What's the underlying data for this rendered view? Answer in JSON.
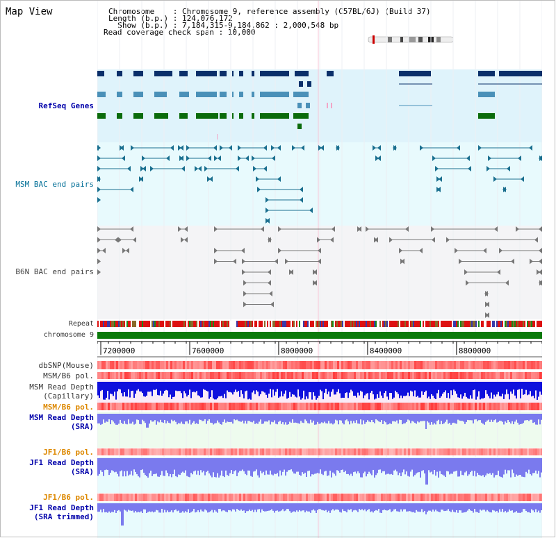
{
  "header": {
    "title": "Map View",
    "info_lines": [
      "Chromosome    : Chromosome 9, reference assembly (C57BL/6J) (Build 37)",
      "Length (b.p.) : 124,076,172",
      "  Show (b.p.) : 7,184,315-9,184,862 : 2,000,548 bp",
      "Read coverage check span : 10,000"
    ]
  },
  "tracks": {
    "refseq": "RefSeq Genes",
    "msm_bac": "MSM BAC end pairs",
    "b6n_bac": "B6N BAC end pairs",
    "repeat": "Repeat",
    "chromosome": "chromosome 9",
    "dbsnp": "dbSNP(Mouse)",
    "msm_b6_pol": "MSM/B6 pol.",
    "msm_depth_cap": "MSM Read Depth",
    "msm_depth_cap_sub": "(Capillary)",
    "msm_b6_pol2": "MSM/B6 pol.",
    "msm_depth_sra": "MSM Read Depth",
    "msm_depth_sra_sub": "(SRA)",
    "jf1_b6_pol": "JF1/B6 pol.",
    "jf1_depth_sra": "JF1 Read Depth",
    "jf1_depth_sra_sub": "(SRA)",
    "jf1_b6_pol2": "JF1/B6 pol.",
    "jf1_depth_trim": "JF1 Read Depth",
    "jf1_depth_trim_sub": "(SRA trimmed)"
  },
  "axis": {
    "ticks": [
      "7200000",
      "7600000",
      "8000000",
      "8400000",
      "8800000"
    ],
    "tick_values": [
      7200000,
      7600000,
      8000000,
      8400000,
      8800000
    ],
    "range": [
      7184315,
      9184862
    ]
  },
  "colors": {
    "refseq_bg": "#dff3fb",
    "msm_bg": "#e8fafd",
    "b6n_bg": "#f4f4f6",
    "gene_navy": "#0a2f6a",
    "gene_blue": "#4a90b8",
    "gene_green": "#0b6b0b",
    "msm_bac": "#1a6f8f",
    "b6n_bac": "#777777",
    "chrom": "#0a7a0a",
    "snp": "#e84040",
    "depth_blue": "#1010dd",
    "depth_light": "#7a7aee",
    "depth_bg_pink": "#fbeaf7",
    "depth_bg_green": "#eefbee",
    "depth_bg_cyan": "#e8fbfd"
  }
}
